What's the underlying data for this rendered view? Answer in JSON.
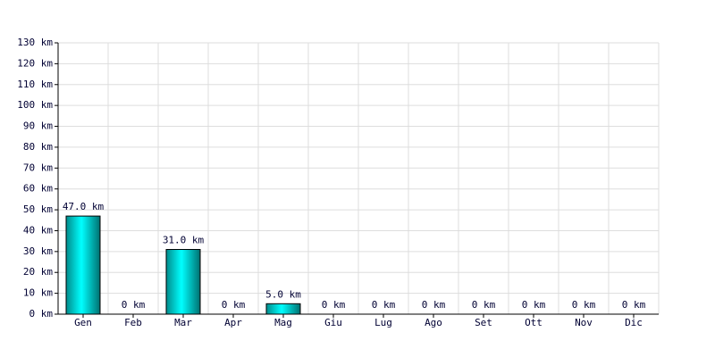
{
  "chart_data": {
    "type": "bar",
    "categories": [
      "Gen",
      "Feb",
      "Mar",
      "Apr",
      "Mag",
      "Giu",
      "Lug",
      "Ago",
      "Set",
      "Ott",
      "Nov",
      "Dic"
    ],
    "values": [
      47.0,
      0,
      31.0,
      0,
      5.0,
      0,
      0,
      0,
      0,
      0,
      0,
      0
    ],
    "value_labels": [
      "47.0 km",
      "0 km",
      "31.0 km",
      "0 km",
      "5.0 km",
      "0 km",
      "0 km",
      "0 km",
      "0 km",
      "0 km",
      "0 km",
      "0 km"
    ],
    "color": "#00e0e0",
    "ylim": [
      0,
      130
    ],
    "yticks": [
      {
        "value": 0,
        "label": "0 km"
      },
      {
        "value": 10,
        "label": "10 km"
      },
      {
        "value": 20,
        "label": "20 km"
      },
      {
        "value": 30,
        "label": "30 km"
      },
      {
        "value": 40,
        "label": "40 km"
      },
      {
        "value": 50,
        "label": "50 km"
      },
      {
        "value": 60,
        "label": "60 km"
      },
      {
        "value": 70,
        "label": "70 km"
      },
      {
        "value": 80,
        "label": "80 km"
      },
      {
        "value": 90,
        "label": "90 km"
      },
      {
        "value": 100,
        "label": "100 km"
      },
      {
        "value": 110,
        "label": "110 km"
      },
      {
        "value": 120,
        "label": "120 km"
      },
      {
        "value": 130,
        "label": "130 km"
      }
    ],
    "grid": true
  }
}
